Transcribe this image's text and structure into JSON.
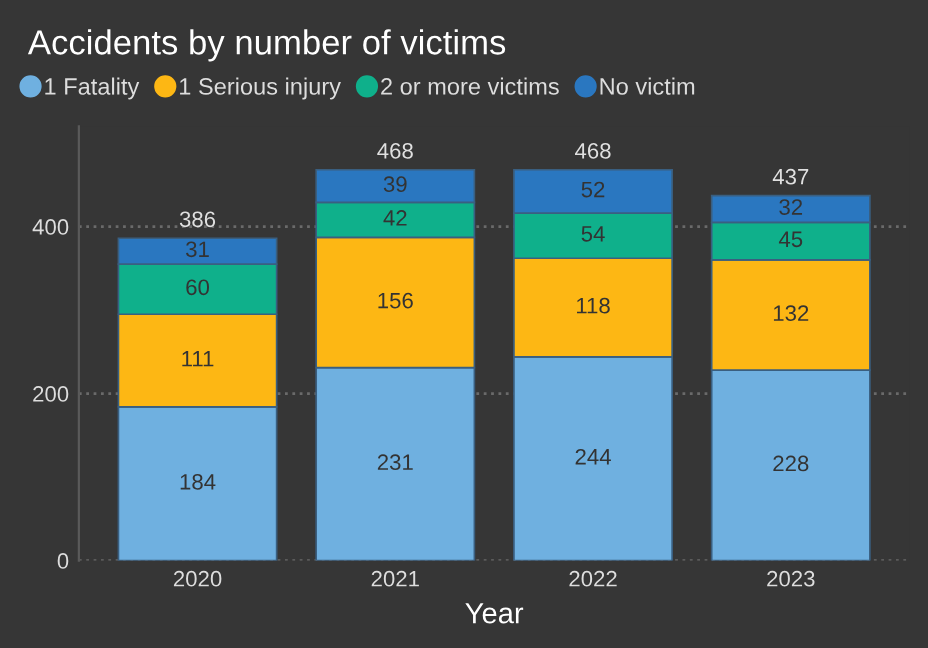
{
  "chart_data": {
    "type": "bar",
    "title": "Accidents by number of victims",
    "xlabel": "Year",
    "categories": [
      "2020",
      "2021",
      "2022",
      "2023"
    ],
    "stacked": true,
    "series": [
      {
        "name": "1 Fatality",
        "color": "#6fb0e0",
        "values": [
          184,
          231,
          244,
          228
        ]
      },
      {
        "name": "1 Serious injury",
        "color": "#fdb714",
        "values": [
          111,
          156,
          118,
          132
        ]
      },
      {
        "name": "2 or more victims",
        "color": "#0fb08b",
        "values": [
          60,
          42,
          54,
          45
        ]
      },
      {
        "name": "No victim",
        "color": "#2a77c0",
        "values": [
          31,
          39,
          52,
          32
        ]
      }
    ],
    "data_labels": true,
    "totals": [
      "386",
      "468",
      "468",
      "437"
    ],
    "ylim": [
      0,
      520
    ],
    "yticks": [
      0,
      200,
      400
    ],
    "grid": "y",
    "legend": "top left",
    "marker": "circle"
  }
}
